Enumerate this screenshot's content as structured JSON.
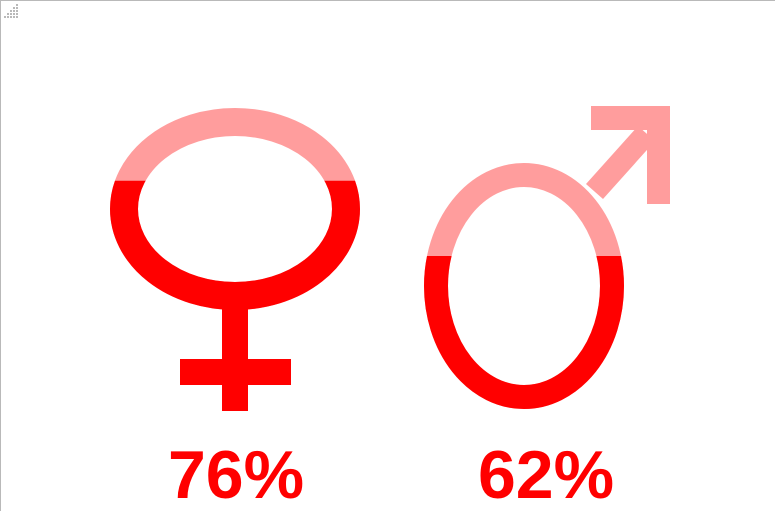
{
  "colors": {
    "filled": "#ff0000",
    "unfilled": "#ff9d9d",
    "background": "#ffffff"
  },
  "chart_data": {
    "type": "pictograph",
    "title": "",
    "items": [
      {
        "symbol": "female-symbol",
        "value": 76,
        "label": "76%"
      },
      {
        "symbol": "male-symbol",
        "value": 62,
        "label": "62%"
      }
    ]
  }
}
